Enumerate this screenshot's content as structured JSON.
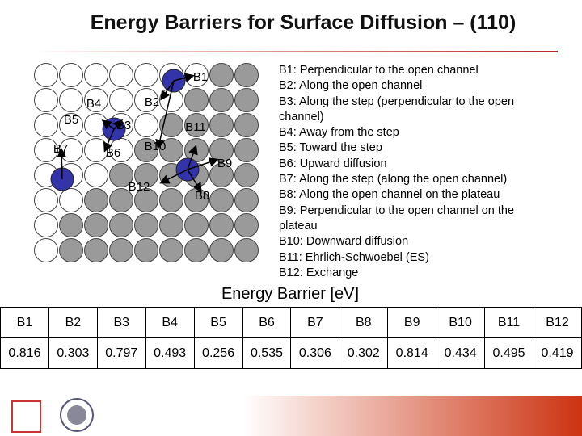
{
  "title": "Energy Barriers for Surface Diffusion – (110)",
  "diagram": {
    "labels": [
      "B1",
      "B2",
      "B3",
      "B4",
      "B5",
      "B6",
      "B7",
      "B8",
      "B9",
      "B10",
      "B11",
      "B12"
    ]
  },
  "descriptions": [
    "B1: Perpendicular to the open channel",
    "B2: Along the open channel",
    "B3: Along the step (perpendicular to the open channel)",
    "B4: Away from the step",
    "B5: Toward the step",
    "B6: Upward diffusion",
    "B7: Along the step (along the open channel)",
    "B8: Along the open channel on the plateau",
    "B9: Perpendicular to the open channel on the plateau",
    "B10: Downward diffusion",
    "B11: Ehrlich-Schwoebel (ES)",
    "B12: Exchange"
  ],
  "table": {
    "caption": "Energy Barrier [eV]",
    "headers": [
      "B1",
      "B2",
      "B3",
      "B4",
      "B5",
      "B6",
      "B7",
      "B8",
      "B9",
      "B10",
      "B11",
      "B12"
    ],
    "values": [
      0.816,
      0.303,
      0.797,
      0.493,
      0.256,
      0.535,
      0.306,
      0.302,
      0.814,
      0.434,
      0.495,
      0.419
    ]
  }
}
